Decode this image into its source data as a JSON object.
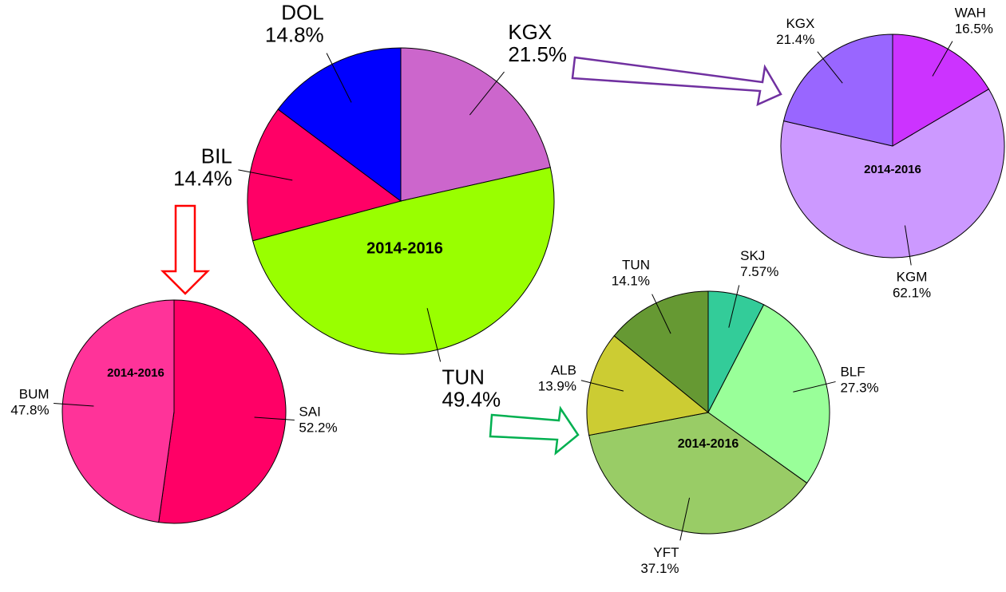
{
  "chart_data": [
    {
      "type": "pie",
      "title": "2014-2016",
      "categories": [
        "KGX",
        "TUN",
        "BIL",
        "DOL"
      ],
      "values": [
        21.5,
        49.4,
        14.4,
        14.8
      ],
      "value_labels": [
        "21.5%",
        "49.4%",
        "14.4%",
        "14.8%"
      ],
      "colors": [
        "#cc66cc",
        "#99ff00",
        "#ff0066",
        "#0000ff"
      ]
    },
    {
      "type": "pie",
      "title": "2014-2016",
      "categories": [
        "SAI",
        "BUM"
      ],
      "values": [
        52.2,
        47.8
      ],
      "value_labels": [
        "52.2%",
        "47.8%"
      ],
      "colors": [
        "#ff0066",
        "#ff3399"
      ]
    },
    {
      "type": "pie",
      "title": "2014-2016",
      "categories": [
        "SKJ",
        "BLF",
        "YFT",
        "ALB",
        "TUN"
      ],
      "values": [
        7.57,
        27.3,
        37.1,
        13.9,
        14.1
      ],
      "value_labels": [
        "7.57%",
        "27.3%",
        "37.1%",
        "13.9%",
        "14.1%"
      ],
      "colors": [
        "#33cc99",
        "#99ff99",
        "#99cc66",
        "#cccc33",
        "#669933"
      ]
    },
    {
      "type": "pie",
      "title": "2014-2016",
      "categories": [
        "WAH",
        "KGM",
        "KGX"
      ],
      "values": [
        16.5,
        62.1,
        21.4
      ],
      "value_labels": [
        "16.5%",
        "62.1%",
        "21.4%"
      ],
      "colors": [
        "#cc33ff",
        "#cc99ff",
        "#9966ff"
      ]
    }
  ]
}
